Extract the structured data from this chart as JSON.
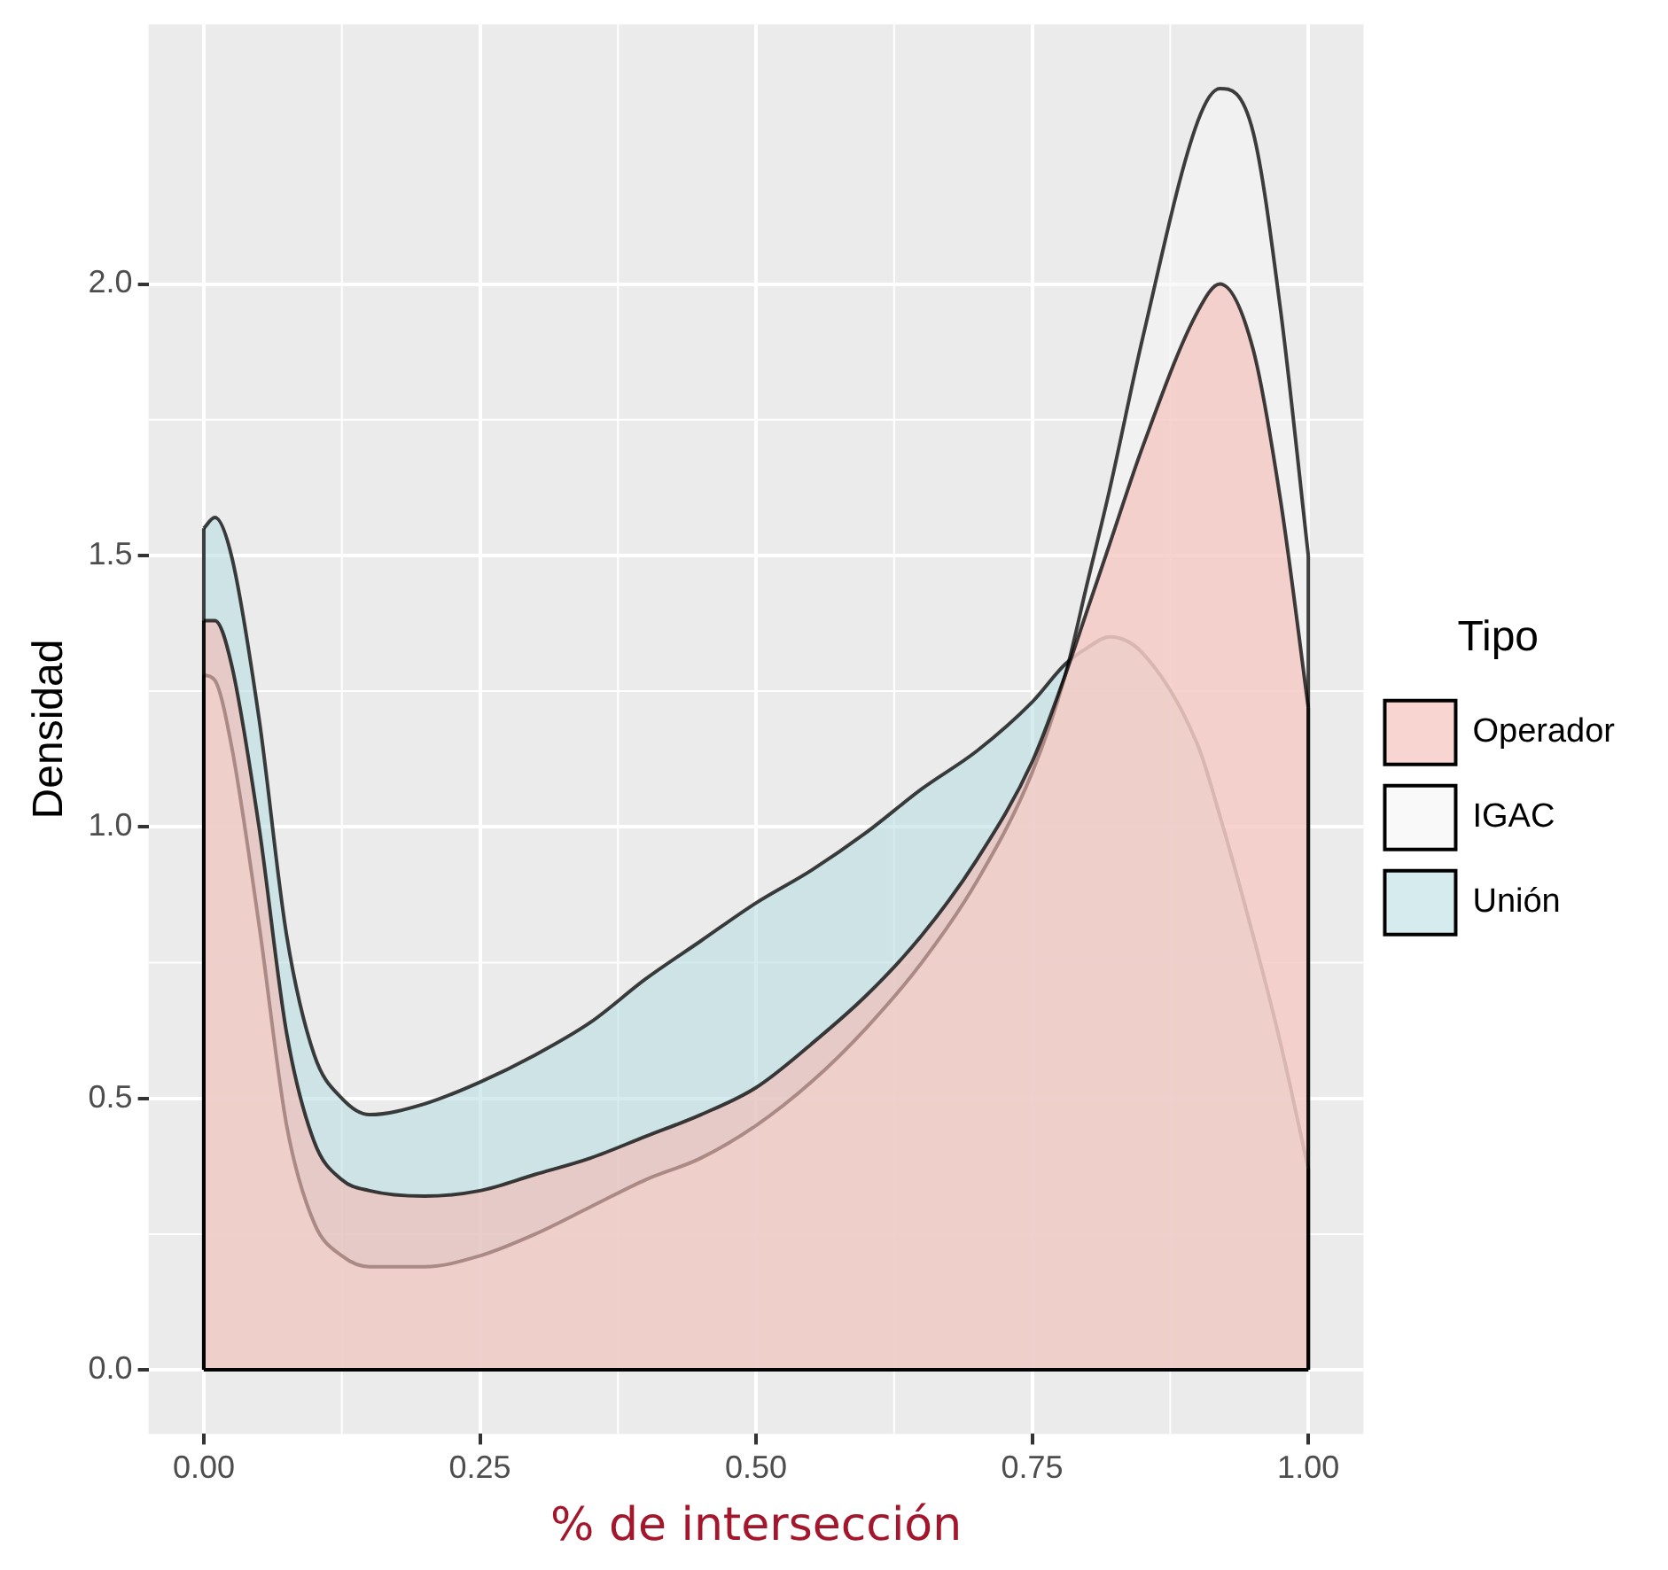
{
  "chart_data": {
    "type": "area",
    "xlabel": "% de intersección",
    "ylabel": "Densidad",
    "legend_title": "Tipo",
    "legend": "right",
    "grid": true,
    "xlim": [
      -0.05,
      1.05
    ],
    "xticks": [
      {
        "value": 0,
        "label": "0.00"
      },
      {
        "value": 0.25,
        "label": "0.25"
      },
      {
        "value": 0.5,
        "label": "0.50"
      },
      {
        "value": 0.75,
        "label": "0.75"
      },
      {
        "value": 1,
        "label": "1.00"
      }
    ],
    "ylim": [
      -0.118,
      2.478
    ],
    "yticks": [
      {
        "value": 0,
        "label": "0.0"
      },
      {
        "value": 0.5,
        "label": "0.5"
      },
      {
        "value": 1,
        "label": "1.0"
      },
      {
        "value": 1.5,
        "label": "1.5"
      },
      {
        "value": 2,
        "label": "2.0"
      }
    ],
    "x": [
      0,
      0.01,
      0.025,
      0.05,
      0.075,
      0.1,
      0.125,
      0.15,
      0.2,
      0.25,
      0.3,
      0.35,
      0.4,
      0.45,
      0.5,
      0.55,
      0.6,
      0.65,
      0.7,
      0.75,
      0.78,
      0.8,
      0.82,
      0.85,
      0.9,
      0.92,
      0.95,
      0.975,
      1
    ],
    "series": [
      {
        "name": "Operador",
        "color": "#f4bcb3",
        "values": [
          1.38,
          1.38,
          1.3,
          1.0,
          0.62,
          0.42,
          0.35,
          0.33,
          0.32,
          0.33,
          0.36,
          0.39,
          0.43,
          0.47,
          0.52,
          0.6,
          0.69,
          0.8,
          0.94,
          1.12,
          1.28,
          1.4,
          1.52,
          1.7,
          1.95,
          2.0,
          1.88,
          1.6,
          1.22
        ]
      },
      {
        "name": "IGAC",
        "color": "#f5f5f5",
        "values": [
          1.28,
          1.27,
          1.15,
          0.82,
          0.45,
          0.27,
          0.21,
          0.19,
          0.19,
          0.21,
          0.25,
          0.3,
          0.35,
          0.39,
          0.45,
          0.53,
          0.63,
          0.75,
          0.9,
          1.1,
          1.28,
          1.45,
          1.62,
          1.9,
          2.3,
          2.36,
          2.28,
          1.95,
          1.5
        ]
      },
      {
        "name": "Unión",
        "color": "#bcdfe3",
        "values": [
          1.55,
          1.57,
          1.5,
          1.2,
          0.8,
          0.58,
          0.5,
          0.47,
          0.49,
          0.53,
          0.58,
          0.64,
          0.72,
          0.79,
          0.86,
          0.92,
          0.99,
          1.07,
          1.14,
          1.23,
          1.3,
          1.33,
          1.35,
          1.32,
          1.15,
          1.02,
          0.8,
          0.6,
          0.37
        ]
      }
    ]
  }
}
